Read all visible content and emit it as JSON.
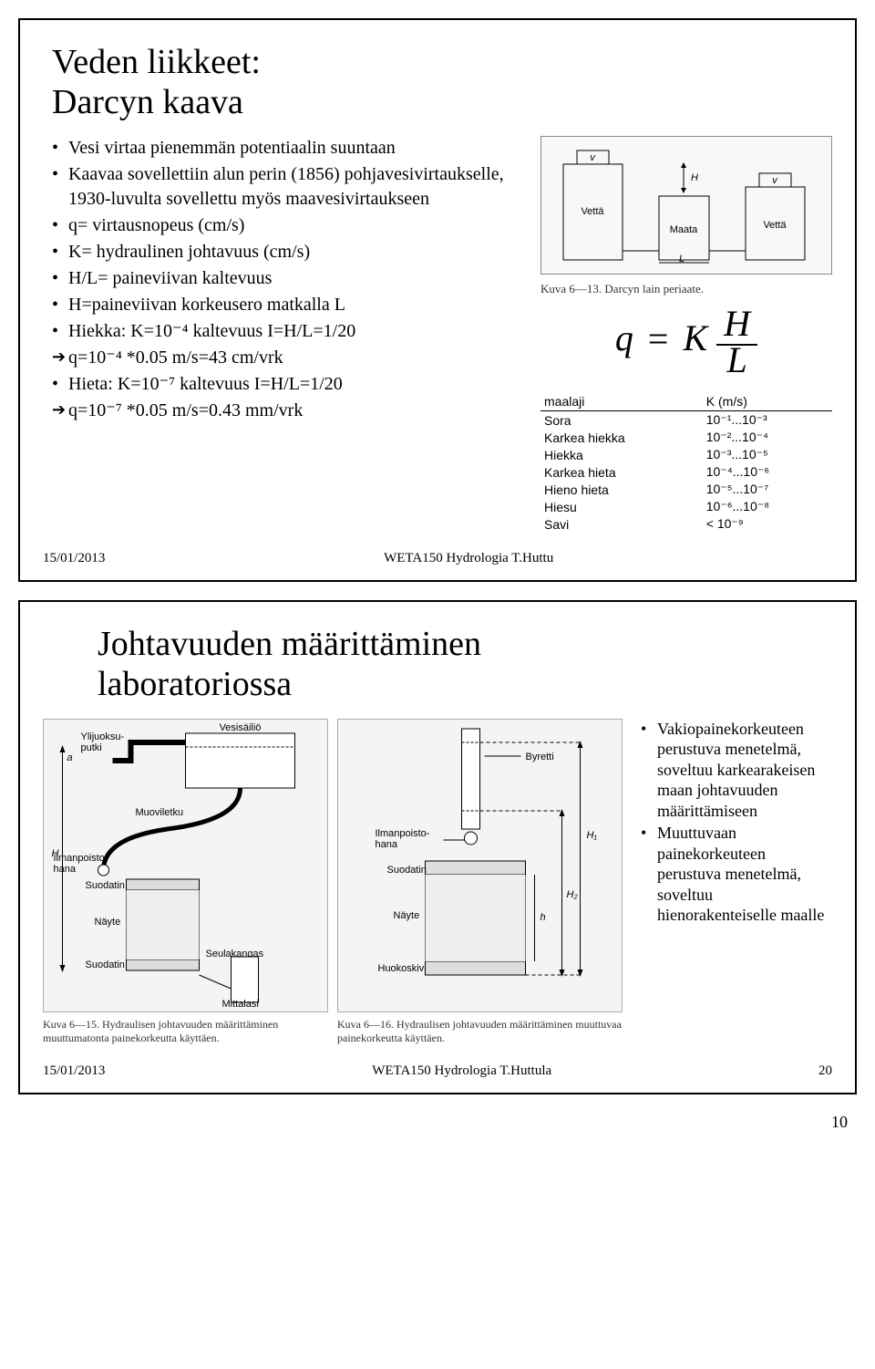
{
  "slide1": {
    "title_line1": "Veden liikkeet:",
    "title_line2": "Darcyn kaava",
    "bullets": [
      "Vesi virtaa pienemmän potentiaalin suuntaan",
      "Kaavaa sovellettiin alun perin (1856) pohjavesivirtaukselle, 1930-luvulta sovellettu myös maavesivirtaukseen",
      "q= virtausnopeus (cm/s)",
      "K= hydraulinen johtavuus (cm/s)",
      "H/L= paineviivan kaltevuus",
      "H=paineviivan korkeusero matkalla L",
      "Hiekka: K=10⁻⁴  kaltevuus I=H/L=1/20",
      "q=10⁻⁴ *0.05 m/s=43 cm/vrk",
      "Hieta: K=10⁻⁷  kaltevuus I=H/L=1/20",
      "q=10⁻⁷ *0.05 m/s=0.43 mm/vrk"
    ],
    "arrow_indices": [
      7,
      9
    ],
    "diagram": {
      "left_box": "Vettä",
      "mid_box": "Maata",
      "right_box": "Vettä",
      "v_label": "v",
      "H_label": "H",
      "L_label": "L",
      "caption": "Kuva 6—13.  Darcyn lain periaate."
    },
    "formula": {
      "q": "q",
      "eq": "=",
      "K": "K",
      "num": "H",
      "den": "L"
    },
    "soil_table": {
      "headers": [
        "maalaji",
        "K (m/s)"
      ],
      "rows": [
        [
          "Sora",
          "10⁻¹...10⁻³"
        ],
        [
          "Karkea hiekka",
          "10⁻²...10⁻⁴"
        ],
        [
          "Hiekka",
          "10⁻³...10⁻⁵"
        ],
        [
          "Karkea hieta",
          "10⁻⁴...10⁻⁶"
        ],
        [
          "Hieno hieta",
          "10⁻⁵...10⁻⁷"
        ],
        [
          "Hiesu",
          "10⁻⁶...10⁻⁸"
        ],
        [
          "Savi",
          "< 10⁻⁹"
        ]
      ]
    },
    "footer_date": "15/01/2013",
    "footer_center": "WETA150 Hydrologia T.Huttu"
  },
  "slide2": {
    "title_line1": "Johtavuuden määrittäminen",
    "title_line2": "laboratoriossa",
    "fig1_labels": {
      "a": "a",
      "ylijuoksu": "Ylijuoksu-\nputki",
      "vesisailio": "Vesisäiliö",
      "muoviletku": "Muoviletku",
      "ilmanpoisto": "Ilmanpoisto-\nhana",
      "suodatin": "Suodatin",
      "nayte": "Näyte",
      "seulakangas": "Seulakangas",
      "mittalasi": "Mittalasi",
      "H": "H"
    },
    "fig2_labels": {
      "byretti": "Byretti",
      "ilmanpoisto": "Ilmanpoisto-\nhana",
      "suodatin": "Suodatin",
      "nayte": "Näyte",
      "huokoskivi": "Huokoskivi",
      "H1": "H₁",
      "H2": "H₂",
      "h": "h"
    },
    "fig1_caption": "Kuva 6—15.  Hydraulisen johtavuuden määrittäminen muuttumatonta painekorkeutta käyttäen.",
    "fig2_caption": "Kuva 6—16.  Hydraulisen johtavuuden määrittäminen muuttuvaa painekorkeutta käyttäen.",
    "right_bullets": [
      "Vakiopainekorkeuteen perustuva menetelmä, soveltuu karkearakeisen maan johtavuuden määrittämiseen",
      "Muuttuvaan painekorkeuteen perustuva menetelmä, soveltuu hienorakenteiselle maalle"
    ],
    "footer_date": "15/01/2013",
    "footer_center": "WETA150 Hydrologia T.Huttula",
    "footer_page": "20"
  },
  "page_number": "10",
  "colors": {
    "text": "#000000",
    "background": "#ffffff",
    "border": "#000000",
    "figure_bg": "#f4f4f4"
  },
  "typography": {
    "title_fontsize_pt": 29,
    "body_fontsize_pt": 15,
    "table_fontsize_pt": 11,
    "caption_fontsize_pt": 10,
    "font_family": "Times New Roman"
  }
}
